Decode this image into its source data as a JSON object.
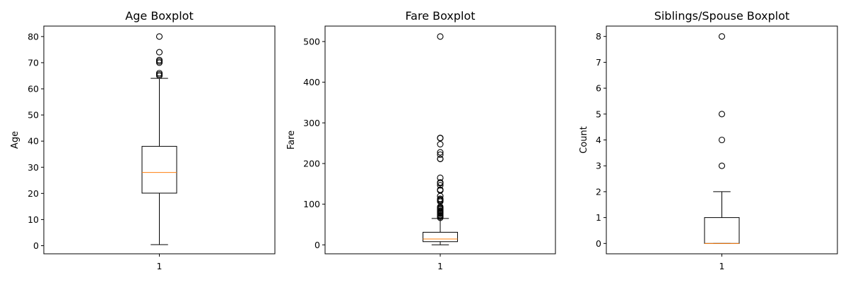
{
  "chart_data": [
    {
      "type": "boxplot",
      "title": "Age Boxplot",
      "ylabel": "Age",
      "xtick_labels": [
        "1"
      ],
      "ylim": [
        -3.1,
        84
      ],
      "yticks": [
        0,
        10,
        20,
        30,
        40,
        50,
        60,
        70,
        80
      ],
      "box": {
        "whisker_low": 0.42,
        "q1": 20.1,
        "median": 28.0,
        "q3": 38.0,
        "whisker_high": 64.0
      },
      "outliers": [
        65,
        65.5,
        66,
        70,
        70.5,
        71,
        74,
        80
      ]
    },
    {
      "type": "boxplot",
      "title": "Fare Boxplot",
      "ylabel": "Fare",
      "xtick_labels": [
        "1"
      ],
      "ylim": [
        -22,
        538
      ],
      "yticks": [
        0,
        100,
        200,
        300,
        400,
        500
      ],
      "box": {
        "whisker_low": 0,
        "q1": 7.9,
        "median": 14.5,
        "q3": 31.0,
        "whisker_high": 65.0
      },
      "outliers": [
        66.6,
        69.5,
        71.3,
        73.5,
        76.7,
        77.3,
        78.9,
        79.2,
        79.6,
        81.9,
        82.2,
        83.2,
        83.5,
        86.5,
        89.1,
        90,
        91.1,
        93.5,
        106.4,
        108.9,
        110.9,
        113.3,
        120,
        133.7,
        134.5,
        135.6,
        146.5,
        151.6,
        153.5,
        164.9,
        211.3,
        211.5,
        221.8,
        227.5,
        247.5,
        262.4,
        263,
        512.3
      ]
    },
    {
      "type": "boxplot",
      "title": "Siblings/Spouse Boxplot",
      "ylabel": "Count",
      "xtick_labels": [
        "1"
      ],
      "ylim": [
        -0.4,
        8.4
      ],
      "yticks": [
        0,
        1,
        2,
        3,
        4,
        5,
        6,
        7,
        8
      ],
      "box": {
        "whisker_low": 0,
        "q1": 0,
        "median": 0,
        "q3": 1,
        "whisker_high": 2
      },
      "outliers": [
        3,
        4,
        5,
        8
      ]
    }
  ],
  "colors": {
    "median": "#ff7f0e",
    "box": "#000000",
    "axes": "#000000"
  }
}
